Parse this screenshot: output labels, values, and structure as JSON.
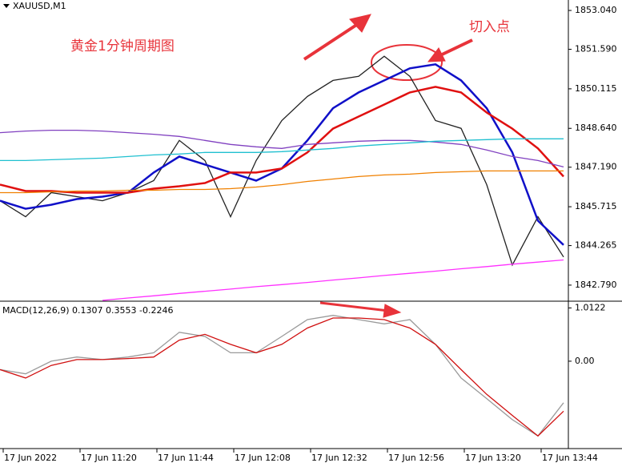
{
  "chart_data": [
    {
      "type": "line",
      "title": "XAUUSD,M1",
      "annotations": [
        "黄金1分钟周期图",
        "切入点"
      ],
      "x": [
        0,
        8,
        16,
        24,
        32,
        40,
        48,
        56,
        64,
        72,
        80,
        88,
        96,
        104,
        112,
        120,
        128,
        136,
        144,
        152,
        160,
        168,
        176
      ],
      "xlim": [
        0,
        177.5
      ],
      "ylim": [
        1842.19,
        1853.43
      ],
      "yticks": [
        {
          "value": 1853.04,
          "label": "1853.040"
        },
        {
          "value": 1851.59,
          "label": "1851.590"
        },
        1850.115,
        {
          "value": 1848.64,
          "label": "1848.640"
        },
        {
          "value": 1847.19,
          "label": "1847.190"
        },
        1845.715,
        1844.265,
        {
          "value": 1842.79,
          "label": "1842.790"
        }
      ],
      "series": [
        {
          "name": "price",
          "color": "#222222",
          "values": [
            1845.94,
            1845.34,
            1846.24,
            1846.09,
            1845.94,
            1846.24,
            1846.69,
            1848.19,
            1847.44,
            1845.34,
            1847.44,
            1848.93,
            1849.83,
            1850.43,
            1850.58,
            1851.33,
            1850.58,
            1848.93,
            1848.64,
            1846.54,
            1843.54,
            1845.34,
            1843.84
          ]
        },
        {
          "name": "blue",
          "color": "#1010c8",
          "values": [
            1845.94,
            1845.64,
            1845.79,
            1846.0,
            1846.09,
            1846.24,
            1846.99,
            1847.59,
            1847.29,
            1846.99,
            1846.69,
            1847.14,
            1848.19,
            1849.39,
            1849.98,
            1850.43,
            1850.88,
            1851.03,
            1850.43,
            1849.39,
            1847.74,
            1845.19,
            1844.29
          ]
        },
        {
          "name": "red",
          "color": "#e01010",
          "values": [
            1846.54,
            1846.3,
            1846.3,
            1846.24,
            1846.24,
            1846.24,
            1846.39,
            1846.48,
            1846.6,
            1846.99,
            1846.99,
            1847.14,
            1847.74,
            1848.63,
            1849.08,
            1849.53,
            1849.98,
            1850.19,
            1849.98,
            1849.23,
            1848.63,
            1847.89,
            1846.84
          ]
        },
        {
          "name": "purple",
          "color": "#8040c0",
          "values": [
            1848.48,
            1848.54,
            1848.57,
            1848.57,
            1848.54,
            1848.48,
            1848.42,
            1848.34,
            1848.19,
            1848.04,
            1847.95,
            1847.89,
            1848.04,
            1848.1,
            1848.16,
            1848.19,
            1848.19,
            1848.13,
            1848.04,
            1847.83,
            1847.59,
            1847.44,
            1847.2
          ]
        },
        {
          "name": "cyan",
          "color": "#20c0d0",
          "values": [
            1847.44,
            1847.44,
            1847.47,
            1847.5,
            1847.53,
            1847.59,
            1847.65,
            1847.68,
            1847.74,
            1847.74,
            1847.74,
            1847.77,
            1847.83,
            1847.89,
            1847.98,
            1848.04,
            1848.1,
            1848.16,
            1848.19,
            1848.22,
            1848.25,
            1848.25,
            1848.25
          ]
        },
        {
          "name": "orange",
          "color": "#f08000",
          "values": [
            1846.24,
            1846.24,
            1846.27,
            1846.3,
            1846.3,
            1846.33,
            1846.33,
            1846.36,
            1846.36,
            1846.39,
            1846.45,
            1846.54,
            1846.66,
            1846.75,
            1846.84,
            1846.9,
            1846.93,
            1846.99,
            1847.02,
            1847.05,
            1847.05,
            1847.05,
            1847.05
          ]
        },
        {
          "name": "magenta",
          "color": "#ff30ff",
          "values": [
            null,
            null,
            null,
            null,
            1842.22,
            1842.31,
            1842.39,
            1842.48,
            1842.56,
            1842.64,
            1842.73,
            1842.81,
            1842.89,
            1842.98,
            1843.06,
            1843.15,
            1843.23,
            1843.31,
            1843.4,
            1843.48,
            1843.57,
            1843.65,
            1843.73
          ]
        }
      ]
    },
    {
      "type": "line",
      "title": "MACD(12,26,9) 0.1307 0.3553 -0.2246",
      "x": [
        0,
        8,
        16,
        24,
        32,
        40,
        48,
        56,
        64,
        72,
        80,
        88,
        96,
        104,
        112,
        120,
        128,
        136,
        144,
        152,
        160,
        168,
        176
      ],
      "xlim": [
        0,
        177.5
      ],
      "xticks": [
        {
          "value": 1,
          "label": "17 Jun 2022"
        },
        {
          "value": 25,
          "label": "17 Jun 11:20"
        },
        {
          "value": 49,
          "label": "17 Jun 11:44"
        },
        {
          "value": 73,
          "label": "17 Jun 12:08"
        },
        {
          "value": 97,
          "label": "17 Jun 12:32"
        },
        {
          "value": 121,
          "label": "17 Jun 12:56"
        },
        {
          "value": 145,
          "label": "17 Jun 13:20"
        },
        {
          "value": 169,
          "label": "17 Jun 13:44"
        }
      ],
      "ylim": [
        -1.66,
        1.14
      ],
      "yticks": [
        1.0122,
        {
          "value": 0,
          "label": "0.00"
        }
      ],
      "series": [
        {
          "name": "macd",
          "color": "#9a9a9a",
          "values": [
            -0.16,
            -0.24,
            0.0,
            0.08,
            0.03,
            0.08,
            0.16,
            0.55,
            0.47,
            0.16,
            0.16,
            0.47,
            0.79,
            0.87,
            0.79,
            0.71,
            0.79,
            0.32,
            -0.32,
            -0.71,
            -1.11,
            -1.42,
            -0.79
          ]
        },
        {
          "name": "signal",
          "color": "#d01010",
          "values": [
            -0.16,
            -0.32,
            -0.08,
            0.03,
            0.03,
            0.05,
            0.08,
            0.4,
            0.51,
            0.32,
            0.16,
            0.32,
            0.63,
            0.82,
            0.82,
            0.79,
            0.63,
            0.32,
            -0.16,
            -0.63,
            -1.03,
            -1.42,
            -0.95
          ]
        }
      ]
    }
  ]
}
